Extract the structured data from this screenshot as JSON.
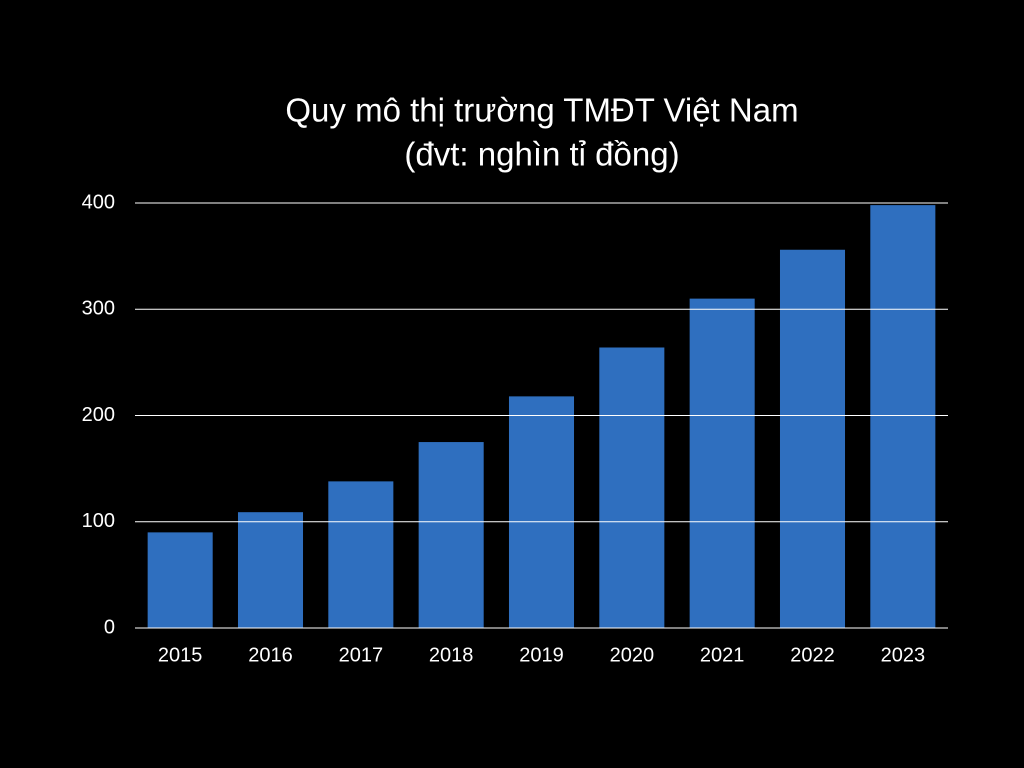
{
  "chart_data": {
    "type": "bar",
    "title": "Quy mô thị trường TMĐT Việt Nam",
    "subtitle": "(đvt: nghìn tỉ đồng)",
    "categories": [
      "2015",
      "2016",
      "2017",
      "2018",
      "2019",
      "2020",
      "2021",
      "2022",
      "2023"
    ],
    "values": [
      90,
      109,
      138,
      175,
      218,
      264,
      310,
      356,
      398
    ],
    "color": "#2f6fbf",
    "ylim": [
      0,
      400
    ],
    "yticks": [
      0,
      100,
      200,
      300,
      400
    ],
    "grid": true
  }
}
